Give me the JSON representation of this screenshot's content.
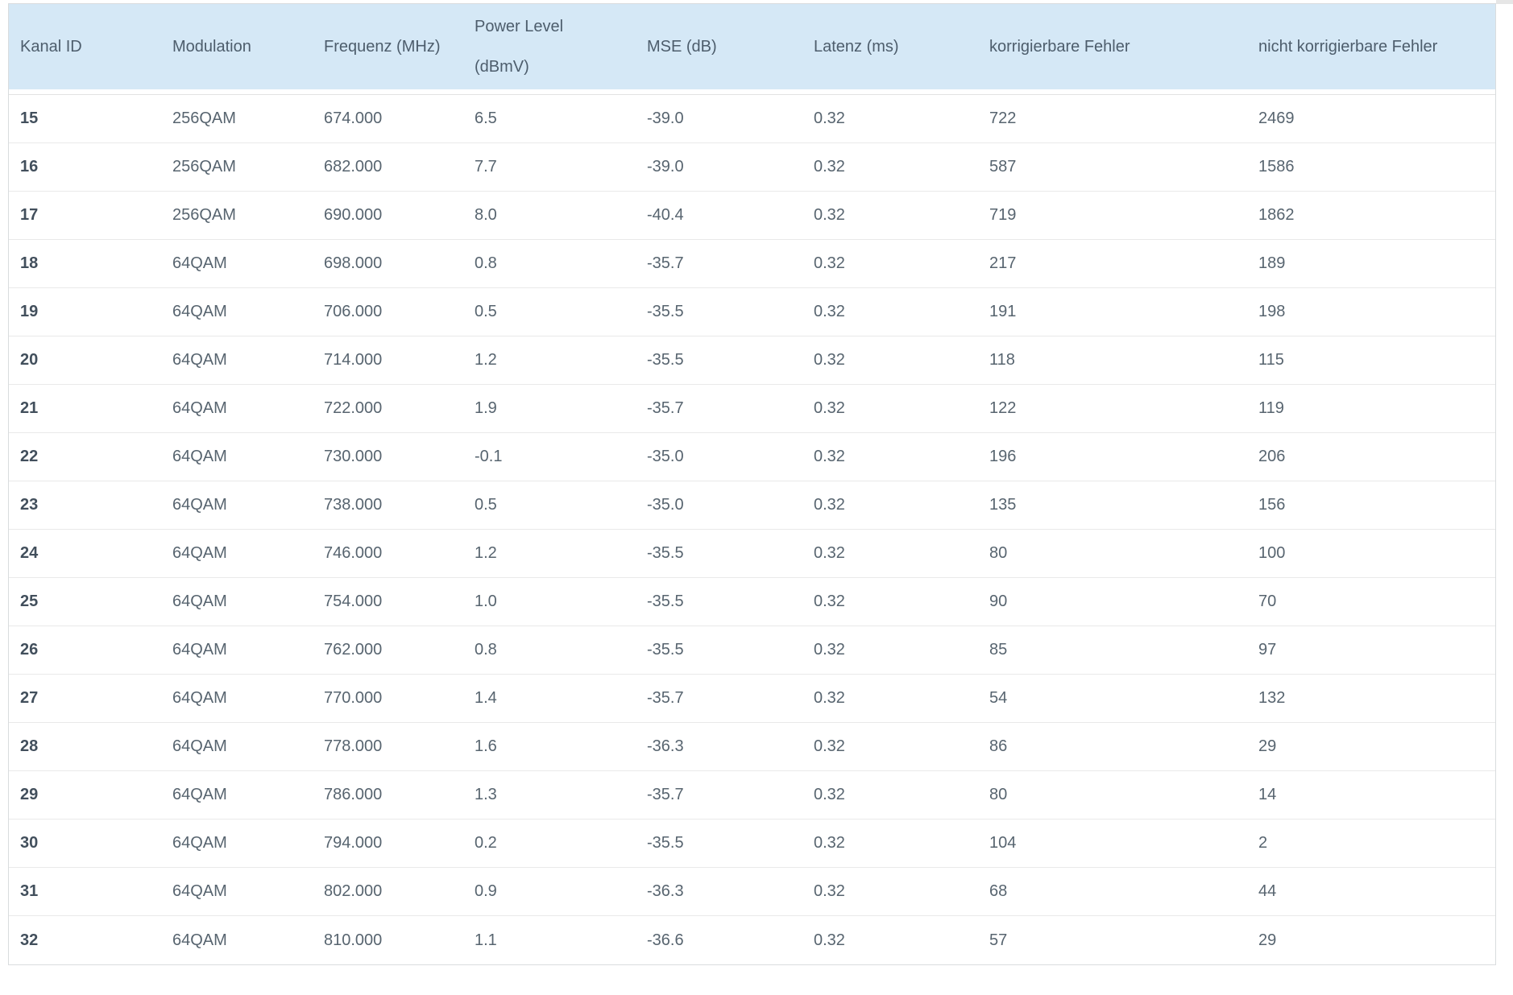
{
  "table": {
    "columns": [
      {
        "label": "Kanal ID"
      },
      {
        "label": "Modulation"
      },
      {
        "label": "Frequenz (MHz)"
      },
      {
        "label": "Power Level",
        "label2": "(dBmV)"
      },
      {
        "label": "MSE (dB)"
      },
      {
        "label": "Latenz (ms)"
      },
      {
        "label": "korrigierbare Fehler"
      },
      {
        "label": "nicht korrigierbare Fehler"
      }
    ],
    "rows": [
      [
        "15",
        "256QAM",
        "674.000",
        "6.5",
        "-39.0",
        "0.32",
        "722",
        "2469"
      ],
      [
        "16",
        "256QAM",
        "682.000",
        "7.7",
        "-39.0",
        "0.32",
        "587",
        "1586"
      ],
      [
        "17",
        "256QAM",
        "690.000",
        "8.0",
        "-40.4",
        "0.32",
        "719",
        "1862"
      ],
      [
        "18",
        "64QAM",
        "698.000",
        "0.8",
        "-35.7",
        "0.32",
        "217",
        "189"
      ],
      [
        "19",
        "64QAM",
        "706.000",
        "0.5",
        "-35.5",
        "0.32",
        "191",
        "198"
      ],
      [
        "20",
        "64QAM",
        "714.000",
        "1.2",
        "-35.5",
        "0.32",
        "118",
        "115"
      ],
      [
        "21",
        "64QAM",
        "722.000",
        "1.9",
        "-35.7",
        "0.32",
        "122",
        "119"
      ],
      [
        "22",
        "64QAM",
        "730.000",
        "-0.1",
        "-35.0",
        "0.32",
        "196",
        "206"
      ],
      [
        "23",
        "64QAM",
        "738.000",
        "0.5",
        "-35.0",
        "0.32",
        "135",
        "156"
      ],
      [
        "24",
        "64QAM",
        "746.000",
        "1.2",
        "-35.5",
        "0.32",
        "80",
        "100"
      ],
      [
        "25",
        "64QAM",
        "754.000",
        "1.0",
        "-35.5",
        "0.32",
        "90",
        "70"
      ],
      [
        "26",
        "64QAM",
        "762.000",
        "0.8",
        "-35.5",
        "0.32",
        "85",
        "97"
      ],
      [
        "27",
        "64QAM",
        "770.000",
        "1.4",
        "-35.7",
        "0.32",
        "54",
        "132"
      ],
      [
        "28",
        "64QAM",
        "778.000",
        "1.6",
        "-36.3",
        "0.32",
        "86",
        "29"
      ],
      [
        "29",
        "64QAM",
        "786.000",
        "1.3",
        "-35.7",
        "0.32",
        "80",
        "14"
      ],
      [
        "30",
        "64QAM",
        "794.000",
        "0.2",
        "-35.5",
        "0.32",
        "104",
        "2"
      ],
      [
        "31",
        "64QAM",
        "802.000",
        "0.9",
        "-36.3",
        "0.32",
        "68",
        "44"
      ],
      [
        "32",
        "64QAM",
        "810.000",
        "1.1",
        "-36.6",
        "0.32",
        "57",
        "29"
      ]
    ]
  },
  "colors": {
    "header_bg": "#d5e8f6",
    "header_text": "#4d5d6c",
    "body_text": "#57646f",
    "row_id_text": "#424f5c",
    "row_separator": "#e9e9e9",
    "table_border": "#d9dcde"
  }
}
